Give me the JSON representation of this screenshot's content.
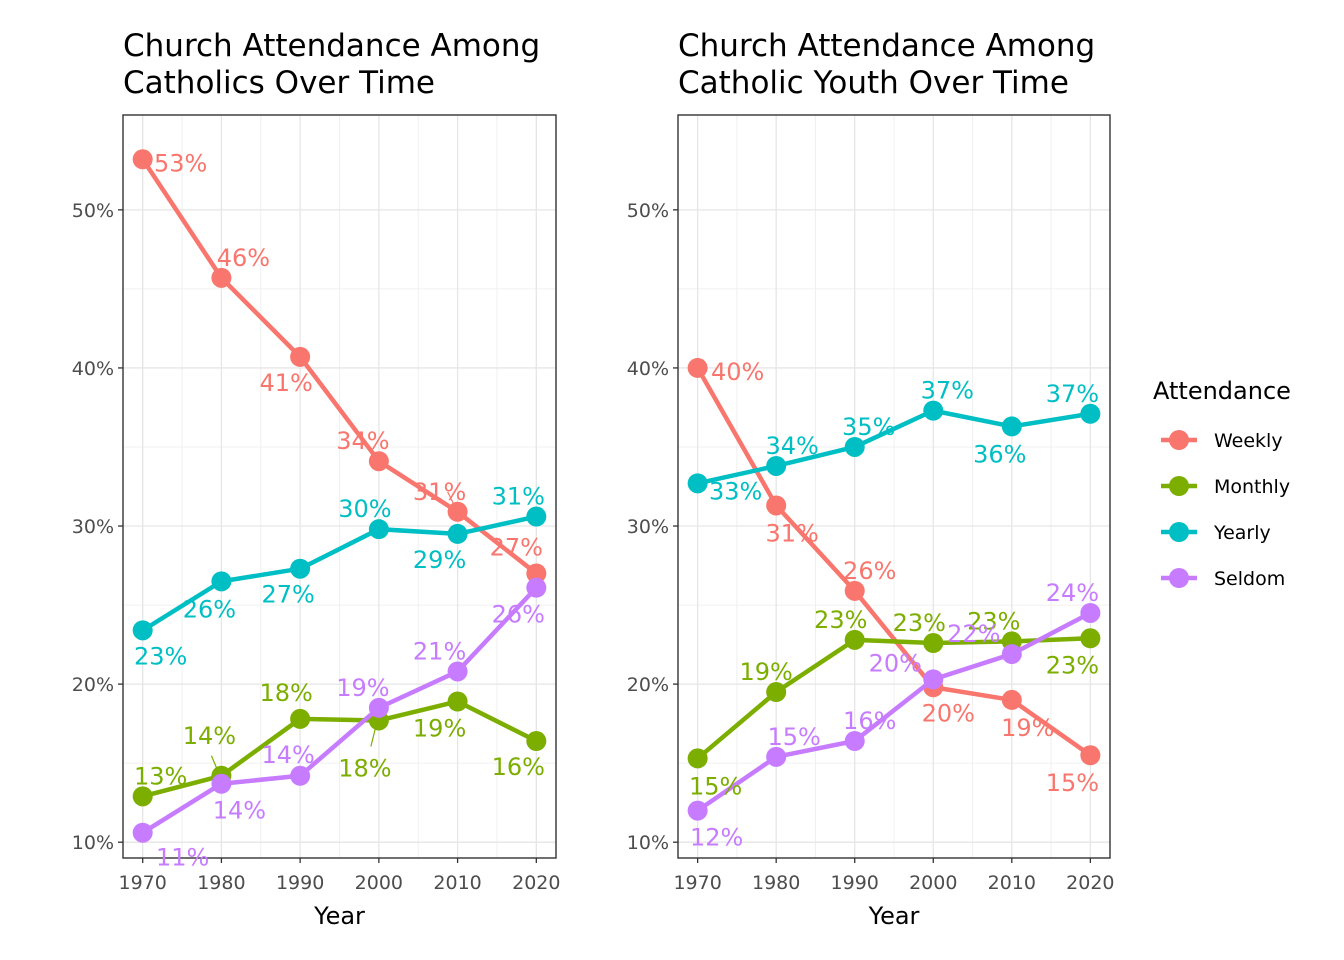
{
  "chart_data": [
    {
      "type": "line",
      "title_lines": [
        "Church Attendance Among",
        "Catholics Over Time"
      ],
      "xlabel": "Year",
      "ylabel": "",
      "x": [
        1970,
        1980,
        1990,
        2000,
        2010,
        2020
      ],
      "x_ticks": [
        "1970",
        "1980",
        "1990",
        "2000",
        "2010",
        "2020"
      ],
      "ylim": [
        0.09,
        0.56
      ],
      "y_ticks": [
        0.1,
        0.2,
        0.3,
        0.4,
        0.5
      ],
      "y_tick_labels": [
        "10%",
        "20%",
        "30%",
        "40%",
        "50%"
      ],
      "grid": true,
      "series": [
        {
          "name": "Weekly",
          "values": [
            0.532,
            0.457,
            0.407,
            0.341,
            0.309,
            0.27
          ],
          "labels": [
            "53%",
            "46%",
            "41%",
            "34%",
            "31%",
            "27%"
          ]
        },
        {
          "name": "Monthly",
          "values": [
            0.129,
            0.142,
            0.178,
            0.177,
            0.189,
            0.164
          ],
          "labels": [
            "13%",
            "14%",
            "18%",
            "18%",
            "19%",
            "16%"
          ]
        },
        {
          "name": "Yearly",
          "values": [
            0.234,
            0.265,
            0.273,
            0.298,
            0.295,
            0.306
          ],
          "labels": [
            "23%",
            "26%",
            "27%",
            "30%",
            "29%",
            "31%"
          ]
        },
        {
          "name": "Seldom",
          "values": [
            0.106,
            0.137,
            0.142,
            0.185,
            0.208,
            0.261
          ],
          "labels": [
            "11%",
            "14%",
            "14%",
            "19%",
            "21%",
            "26%"
          ]
        }
      ]
    },
    {
      "type": "line",
      "title_lines": [
        "Church Attendance Among",
        "Catholic Youth Over Time"
      ],
      "xlabel": "Year",
      "ylabel": "",
      "x": [
        1970,
        1980,
        1990,
        2000,
        2010,
        2020
      ],
      "x_ticks": [
        "1970",
        "1980",
        "1990",
        "2000",
        "2010",
        "2020"
      ],
      "ylim": [
        0.09,
        0.56
      ],
      "y_ticks": [
        0.1,
        0.2,
        0.3,
        0.4,
        0.5
      ],
      "y_tick_labels": [
        "10%",
        "20%",
        "30%",
        "40%",
        "50%"
      ],
      "grid": true,
      "series": [
        {
          "name": "Weekly",
          "values": [
            0.4,
            0.313,
            0.259,
            0.198,
            0.19,
            0.155
          ],
          "labels": [
            "40%",
            "31%",
            "26%",
            "20%",
            "19%",
            "15%"
          ]
        },
        {
          "name": "Monthly",
          "values": [
            0.153,
            0.195,
            0.228,
            0.226,
            0.227,
            0.229
          ],
          "labels": [
            "15%",
            "19%",
            "23%",
            "23%",
            "23%",
            "23%"
          ]
        },
        {
          "name": "Yearly",
          "values": [
            0.327,
            0.338,
            0.35,
            0.373,
            0.363,
            0.371
          ],
          "labels": [
            "33%",
            "34%",
            "35%",
            "37%",
            "36%",
            "37%"
          ]
        },
        {
          "name": "Seldom",
          "values": [
            0.12,
            0.154,
            0.164,
            0.203,
            0.219,
            0.245
          ],
          "labels": [
            "12%",
            "15%",
            "16%",
            "20%",
            "22%",
            "24%"
          ]
        }
      ]
    }
  ],
  "legend": {
    "title": "Attendance",
    "items": [
      {
        "label": "Weekly",
        "color": "#F8766D"
      },
      {
        "label": "Monthly",
        "color": "#7CAE00"
      },
      {
        "label": "Yearly",
        "color": "#00BFC4"
      },
      {
        "label": "Seldom",
        "color": "#C77CFF"
      }
    ]
  }
}
